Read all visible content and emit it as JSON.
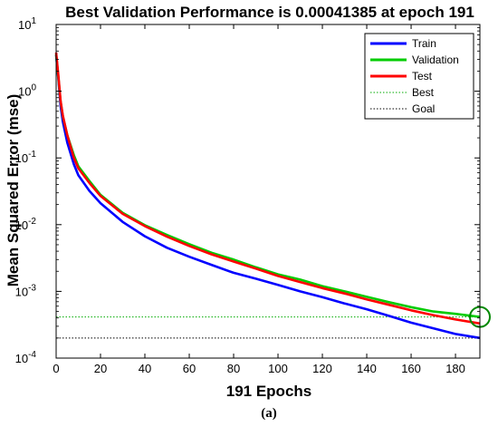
{
  "chart_data": {
    "type": "line",
    "title": "Best Validation Performance is 0.00041385 at epoch 191",
    "xlabel": "191 Epochs",
    "ylabel": "Mean Squared Error  (mse)",
    "caption": "(a)",
    "xlim": [
      0,
      191
    ],
    "ylim": [
      0.0001,
      10
    ],
    "yscale": "log",
    "xticks": [
      0,
      20,
      40,
      60,
      80,
      100,
      120,
      140,
      160,
      180
    ],
    "yticks": [
      {
        "value": 10,
        "base": "10",
        "exp": "1"
      },
      {
        "value": 1,
        "base": "10",
        "exp": "0"
      },
      {
        "value": 0.1,
        "base": "10",
        "exp": "-1"
      },
      {
        "value": 0.01,
        "base": "10",
        "exp": "-2"
      },
      {
        "value": 0.001,
        "base": "10",
        "exp": "-3"
      },
      {
        "value": 0.0001,
        "base": "10",
        "exp": "-4"
      }
    ],
    "legend_position": "top-right",
    "grid": false,
    "series": [
      {
        "name": "Train",
        "color": "#0000ff",
        "style": "solid",
        "x": [
          0,
          1,
          2,
          3,
          5,
          8,
          10,
          15,
          20,
          30,
          40,
          50,
          60,
          70,
          80,
          90,
          100,
          110,
          120,
          130,
          140,
          150,
          160,
          170,
          180,
          191
        ],
        "y": [
          3.5,
          1.5,
          0.6,
          0.35,
          0.17,
          0.08,
          0.055,
          0.032,
          0.021,
          0.011,
          0.0067,
          0.0045,
          0.0033,
          0.0025,
          0.0019,
          0.00155,
          0.00125,
          0.001,
          0.00082,
          0.00066,
          0.00054,
          0.00043,
          0.00034,
          0.00028,
          0.00023,
          0.0002
        ]
      },
      {
        "name": "Validation",
        "color": "#00cc00",
        "style": "solid",
        "x": [
          0,
          1,
          2,
          3,
          5,
          8,
          10,
          15,
          20,
          30,
          40,
          50,
          60,
          70,
          80,
          90,
          100,
          110,
          120,
          130,
          140,
          150,
          160,
          170,
          180,
          191
        ],
        "y": [
          3.6,
          1.6,
          0.7,
          0.42,
          0.22,
          0.11,
          0.075,
          0.045,
          0.028,
          0.015,
          0.0098,
          0.007,
          0.0051,
          0.0038,
          0.003,
          0.0023,
          0.0018,
          0.0015,
          0.0012,
          0.001,
          0.00083,
          0.00069,
          0.00058,
          0.0005,
          0.00046,
          0.00041385
        ]
      },
      {
        "name": "Test",
        "color": "#ff0000",
        "style": "solid",
        "x": [
          0,
          1,
          2,
          3,
          5,
          8,
          10,
          15,
          20,
          30,
          40,
          50,
          60,
          70,
          80,
          90,
          100,
          110,
          120,
          130,
          140,
          150,
          160,
          170,
          180,
          191
        ],
        "y": [
          3.8,
          1.7,
          0.72,
          0.43,
          0.22,
          0.1,
          0.07,
          0.042,
          0.027,
          0.0145,
          0.0095,
          0.0066,
          0.0048,
          0.0036,
          0.0028,
          0.0022,
          0.0017,
          0.00138,
          0.00112,
          0.00093,
          0.00076,
          0.00063,
          0.00052,
          0.00044,
          0.00038,
          0.00033
        ]
      }
    ],
    "best": {
      "name": "Best",
      "color": "#00aa00",
      "epoch": 191,
      "value": 0.00041385
    },
    "goal": {
      "name": "Goal",
      "color": "#000000",
      "value": 0.0002
    }
  }
}
